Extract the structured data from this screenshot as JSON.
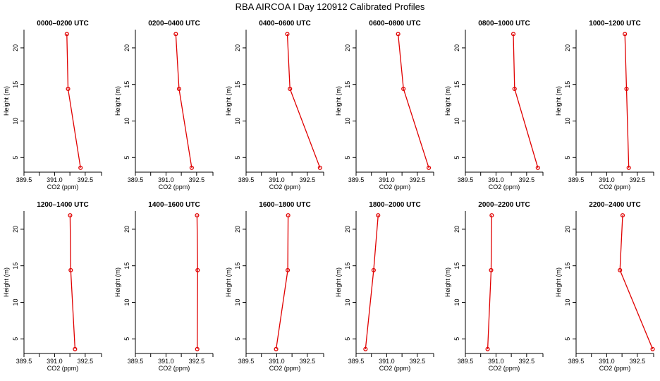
{
  "figure": {
    "title": "RBA AIRCOA I  Day 120912  Calibrated Profiles"
  },
  "chart_data": [
    {
      "type": "line",
      "title": "0000–0200 UTC",
      "xlabel": "CO2 (ppm)",
      "ylabel": "Height (m)",
      "xlim": [
        389.5,
        393.3
      ],
      "ylim": [
        3,
        22.5
      ],
      "xticks": [
        "389.5",
        "391.0",
        "392.5"
      ],
      "xticks_minor": [
        390.25,
        391.75
      ],
      "yticks": [
        5,
        10,
        15,
        20
      ],
      "series": [
        {
          "x": [
            392.27,
            391.66,
            391.6
          ],
          "y": [
            3.6,
            14.4,
            21.9
          ]
        }
      ]
    },
    {
      "type": "line",
      "title": "0200–0400 UTC",
      "xlabel": "CO2 (ppm)",
      "ylabel": "Height (m)",
      "xlim": [
        389.5,
        393.3
      ],
      "ylim": [
        3,
        22.5
      ],
      "xticks": [
        "389.5",
        "391.0",
        "392.5"
      ],
      "xticks_minor": [
        390.25,
        391.75
      ],
      "yticks": [
        5,
        10,
        15,
        20
      ],
      "series": [
        {
          "x": [
            392.26,
            391.64,
            391.48
          ],
          "y": [
            3.6,
            14.4,
            21.9
          ]
        }
      ]
    },
    {
      "type": "line",
      "title": "0400–0600 UTC",
      "xlabel": "CO2 (ppm)",
      "ylabel": "Height (m)",
      "xlim": [
        389.5,
        393.3
      ],
      "ylim": [
        3,
        22.5
      ],
      "xticks": [
        "389.5",
        "391.0",
        "392.5"
      ],
      "xticks_minor": [
        390.25,
        391.75
      ],
      "yticks": [
        5,
        10,
        15,
        20
      ],
      "series": [
        {
          "x": [
            393.12,
            391.65,
            391.52
          ],
          "y": [
            3.6,
            14.4,
            21.9
          ]
        }
      ]
    },
    {
      "type": "line",
      "title": "0600–0800 UTC",
      "xlabel": "CO2 (ppm)",
      "ylabel": "Height (m)",
      "xlim": [
        389.5,
        393.3
      ],
      "ylim": [
        3,
        22.5
      ],
      "xticks": [
        "389.5",
        "391.0",
        "392.5"
      ],
      "xticks_minor": [
        390.25,
        391.75
      ],
      "yticks": [
        5,
        10,
        15,
        20
      ],
      "series": [
        {
          "x": [
            393.06,
            391.82,
            391.56
          ],
          "y": [
            3.6,
            14.4,
            21.9
          ]
        }
      ]
    },
    {
      "type": "line",
      "title": "0800–1000 UTC",
      "xlabel": "CO2 (ppm)",
      "ylabel": "Height (m)",
      "xlim": [
        389.5,
        393.3
      ],
      "ylim": [
        3,
        22.5
      ],
      "xticks": [
        "389.5",
        "391.0",
        "392.5"
      ],
      "xticks_minor": [
        390.25,
        391.75
      ],
      "yticks": [
        5,
        10,
        15,
        20
      ],
      "series": [
        {
          "x": [
            393.05,
            391.91,
            391.85
          ],
          "y": [
            3.6,
            14.4,
            21.9
          ]
        }
      ]
    },
    {
      "type": "line",
      "title": "1000–1200 UTC",
      "xlabel": "CO2 (ppm)",
      "ylabel": "Height (m)",
      "xlim": [
        389.5,
        393.3
      ],
      "ylim": [
        3,
        22.5
      ],
      "xticks": [
        "389.5",
        "391.0",
        "392.5"
      ],
      "xticks_minor": [
        390.25,
        391.75
      ],
      "yticks": [
        5,
        10,
        15,
        20
      ],
      "series": [
        {
          "x": [
            392.08,
            391.97,
            391.89
          ],
          "y": [
            3.6,
            14.4,
            21.9
          ]
        }
      ]
    },
    {
      "type": "line",
      "title": "1200–1400 UTC",
      "xlabel": "CO2 (ppm)",
      "ylabel": "Height (m)",
      "xlim": [
        389.5,
        393.3
      ],
      "ylim": [
        3,
        22.5
      ],
      "xticks": [
        "389.5",
        "391.0",
        "392.5"
      ],
      "xticks_minor": [
        390.25,
        391.75
      ],
      "yticks": [
        5,
        10,
        15,
        20
      ],
      "series": [
        {
          "x": [
            392.0,
            391.79,
            391.76
          ],
          "y": [
            3.6,
            14.4,
            21.9
          ]
        }
      ]
    },
    {
      "type": "line",
      "title": "1400–1600 UTC",
      "xlabel": "CO2 (ppm)",
      "ylabel": "Height (m)",
      "xlim": [
        389.5,
        393.3
      ],
      "ylim": [
        3,
        22.5
      ],
      "xticks": [
        "389.5",
        "391.0",
        "392.5"
      ],
      "xticks_minor": [
        390.25,
        391.75
      ],
      "yticks": [
        5,
        10,
        15,
        20
      ],
      "series": [
        {
          "x": [
            392.53,
            392.55,
            392.52
          ],
          "y": [
            3.6,
            14.4,
            21.9
          ]
        }
      ]
    },
    {
      "type": "line",
      "title": "1600–1800 UTC",
      "xlabel": "CO2 (ppm)",
      "ylabel": "Height (m)",
      "xlim": [
        389.5,
        393.3
      ],
      "ylim": [
        3,
        22.5
      ],
      "xticks": [
        "389.5",
        "391.0",
        "392.5"
      ],
      "xticks_minor": [
        390.25,
        391.75
      ],
      "yticks": [
        5,
        10,
        15,
        20
      ],
      "series": [
        {
          "x": [
            390.97,
            391.54,
            391.56
          ],
          "y": [
            3.6,
            14.4,
            21.9
          ]
        }
      ]
    },
    {
      "type": "line",
      "title": "1800–2000 UTC",
      "xlabel": "CO2 (ppm)",
      "ylabel": "Height (m)",
      "xlim": [
        389.5,
        393.3
      ],
      "ylim": [
        3,
        22.5
      ],
      "xticks": [
        "389.5",
        "391.0",
        "392.5"
      ],
      "xticks_minor": [
        390.25,
        391.75
      ],
      "yticks": [
        5,
        10,
        15,
        20
      ],
      "series": [
        {
          "x": [
            389.96,
            390.36,
            390.58
          ],
          "y": [
            3.6,
            14.4,
            21.9
          ]
        }
      ]
    },
    {
      "type": "line",
      "title": "2000–2200 UTC",
      "xlabel": "CO2 (ppm)",
      "ylabel": "Height (m)",
      "xlim": [
        389.5,
        393.3
      ],
      "ylim": [
        3,
        22.5
      ],
      "xticks": [
        "389.5",
        "391.0",
        "392.5"
      ],
      "xticks_minor": [
        390.25,
        391.75
      ],
      "yticks": [
        5,
        10,
        15,
        20
      ],
      "series": [
        {
          "x": [
            390.59,
            390.76,
            390.79
          ],
          "y": [
            3.6,
            14.4,
            21.9
          ]
        }
      ]
    },
    {
      "type": "line",
      "title": "2200–2400 UTC",
      "xlabel": "CO2 (ppm)",
      "ylabel": "Height (m)",
      "xlim": [
        389.5,
        393.3
      ],
      "ylim": [
        3,
        22.5
      ],
      "xticks": [
        "389.5",
        "391.0",
        "392.5"
      ],
      "xticks_minor": [
        390.25,
        391.75
      ],
      "yticks": [
        5,
        10,
        15,
        20
      ],
      "series": [
        {
          "x": [
            393.25,
            391.65,
            391.78
          ],
          "y": [
            3.6,
            14.4,
            21.9
          ]
        }
      ]
    }
  ],
  "colors": {
    "series": "#e00000",
    "axis": "#000000"
  }
}
